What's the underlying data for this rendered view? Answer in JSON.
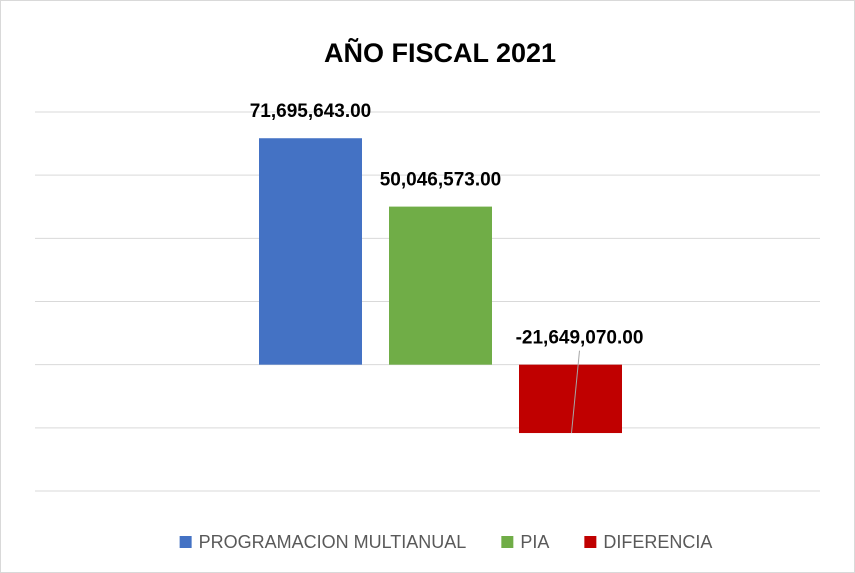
{
  "chart_data": {
    "type": "bar",
    "title": "AÑO FISCAL 2021",
    "categories": [
      null
    ],
    "series": [
      {
        "name": "PROGRAMACION MULTIANUAL",
        "color": "#4472c4",
        "values": [
          71695643
        ],
        "value_labels": [
          "71,695,643.00"
        ]
      },
      {
        "name": "PIA",
        "color": "#70ad47",
        "values": [
          50046573
        ],
        "value_labels": [
          "50,046,573.00"
        ]
      },
      {
        "name": "DIFERENCIA",
        "color": "#c00000",
        "values": [
          -21649070
        ],
        "value_labels": [
          "-21,649,070.00"
        ]
      }
    ],
    "ylim": [
      -40000000,
      80000000
    ],
    "yticks": [
      -40000000,
      -20000000,
      0,
      20000000,
      40000000,
      60000000,
      80000000
    ],
    "grid": true,
    "legend": "bottom"
  }
}
